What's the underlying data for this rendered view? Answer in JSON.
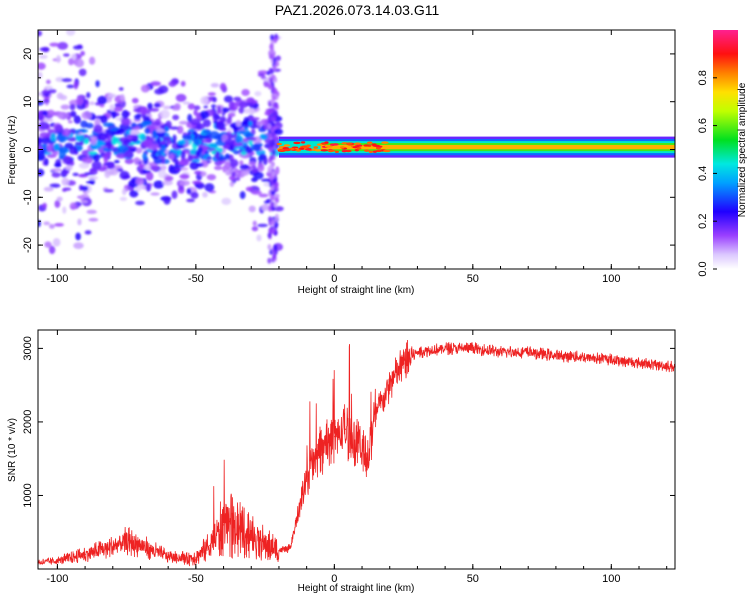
{
  "title": "PAZ1.2026.073.14.03.G11",
  "chart_data": [
    {
      "type": "heatmap",
      "xlabel": "Height of straight line (km)",
      "ylabel": "Frequency (Hz)",
      "xlim": [
        -107,
        123
      ],
      "ylim": [
        -25,
        25
      ],
      "x_ticks": [
        -100,
        -50,
        0,
        50,
        100
      ],
      "y_ticks": [
        -20,
        -10,
        0,
        10,
        20
      ],
      "colorbar": {
        "label": "Normalized spectral amplitude",
        "range": [
          0,
          1
        ],
        "ticks": [
          "0.0",
          "0.2",
          "0.4",
          "0.6",
          "0.8"
        ],
        "tick_values": [
          0.0,
          0.2,
          0.4,
          0.6,
          0.8
        ],
        "colors": [
          "#ffffff",
          "#c8a0ff",
          "#7a00ff",
          "#0000ff",
          "#00e0ff",
          "#00ff40",
          "#ffff00",
          "#ff8000",
          "#ff0000",
          "#ff0090"
        ]
      },
      "features": [
        {
          "x_range": [
            -107,
            -20
          ],
          "freq_center_hz": 1.5,
          "description": "scattered low-amplitude energy, strongest near 0-5 Hz"
        },
        {
          "x_range": [
            -20,
            123
          ],
          "freq_center_hz": 0.5,
          "description": "narrow high-amplitude band near 0 Hz"
        }
      ]
    },
    {
      "type": "line",
      "xlabel": "Height of straight line (km)",
      "ylabel": "SNR (10 * v/v)",
      "xlim": [
        -107,
        123
      ],
      "ylim": [
        0,
        3250
      ],
      "x_ticks": [
        -100,
        -50,
        0,
        50,
        100
      ],
      "y_ticks": [
        1000,
        2000,
        3000
      ],
      "color": "#ee2222",
      "x": [
        -107,
        -100,
        -90,
        -80,
        -75,
        -70,
        -60,
        -55,
        -50,
        -45,
        -40,
        -35,
        -30,
        -25,
        -20,
        -16,
        -12,
        -8,
        -4,
        0,
        4,
        8,
        12,
        15,
        20,
        25,
        30,
        40,
        50,
        60,
        70,
        80,
        90,
        100,
        110,
        123
      ],
      "y": [
        90,
        110,
        200,
        300,
        380,
        320,
        170,
        150,
        160,
        320,
        600,
        550,
        450,
        330,
        250,
        280,
        900,
        1500,
        1650,
        1800,
        1900,
        1750,
        1500,
        2100,
        2500,
        2800,
        2950,
        3000,
        3000,
        2950,
        2950,
        2900,
        2880,
        2850,
        2800,
        2750
      ]
    }
  ]
}
